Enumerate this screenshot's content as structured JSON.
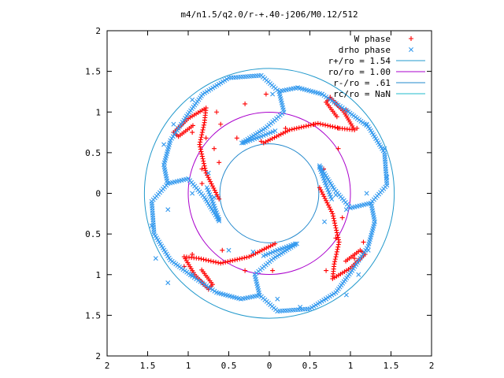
{
  "chart_data": {
    "type": "scatter",
    "title": "m4/n1.5/q2.0/r-+.40-j206/M0.12/512",
    "xlabel": "",
    "ylabel": "",
    "xlim": [
      -2,
      2
    ],
    "ylim": [
      -2,
      2
    ],
    "x_ticks": [
      -2,
      -1.5,
      -1,
      -0.5,
      0,
      0.5,
      1,
      1.5,
      2
    ],
    "y_ticks": [
      -2,
      -1.5,
      -1,
      -0.5,
      0,
      0.5,
      1,
      1.5,
      2
    ],
    "x_tick_labels": [
      "2",
      "1.5",
      "1",
      "0.5",
      "0",
      "0.5",
      "1",
      "1.5",
      "2"
    ],
    "y_tick_labels": [
      "2",
      "1.5",
      "1",
      "0.5",
      "0",
      "0.5",
      "1",
      "1.5",
      "2"
    ],
    "grid": false,
    "legend_position": "top-right",
    "colors": {
      "w_phase": "#ff0000",
      "drho_phase": "#3399ee",
      "r_plus": "#2299cc",
      "r_o": "#aa00cc",
      "r_minus": "#2288cc",
      "r_c": "#22bbcc"
    },
    "series": [
      {
        "name": "W phase",
        "marker": "+",
        "color": "#ff0000"
      },
      {
        "name": "drho phase",
        "marker": "x",
        "color": "#3399ee"
      },
      {
        "name": "r+/ro = 1.54",
        "kind": "circle",
        "radius": 1.54,
        "color": "#2299cc"
      },
      {
        "name": "ro/ro = 1.00",
        "kind": "circle",
        "radius": 1.0,
        "color": "#aa00cc"
      },
      {
        "name": "r-/ro = .61",
        "kind": "circle",
        "radius": 0.61,
        "color": "#2288cc"
      },
      {
        "name": "rc/ro = NaN",
        "kind": "circle",
        "radius": null,
        "color": "#22bbcc"
      }
    ],
    "spiral_arms": {
      "count": 4,
      "red_points": [
        [
          -0.04,
          1.22
        ],
        [
          -0.3,
          1.1
        ],
        [
          -0.65,
          1.0
        ],
        [
          -0.95,
          0.75
        ],
        [
          -0.78,
          0.68
        ],
        [
          -0.6,
          0.85
        ],
        [
          -0.68,
          0.55
        ],
        [
          -0.83,
          0.3
        ],
        [
          -0.83,
          0.12
        ],
        [
          -0.62,
          0.38
        ],
        [
          -0.4,
          0.68
        ],
        [
          -0.1,
          0.64
        ],
        [
          0.2,
          0.8
        ],
        [
          0.55,
          0.85
        ],
        [
          0.85,
          0.8
        ],
        [
          1.08,
          0.8
        ],
        [
          0.95,
          1.02
        ],
        [
          0.75,
          1.18
        ],
        [
          0.85,
          0.55
        ],
        [
          0.67,
          0.3
        ],
        [
          0.9,
          -0.3
        ],
        [
          0.82,
          -0.55
        ],
        [
          0.7,
          -0.95
        ],
        [
          1.05,
          -0.8
        ],
        [
          1.16,
          -0.6
        ],
        [
          0.04,
          -0.95
        ],
        [
          -0.3,
          -0.95
        ],
        [
          -0.58,
          -0.7
        ],
        [
          -0.95,
          -0.75
        ],
        [
          -1.05,
          -0.9
        ]
      ],
      "blue_points": [
        [
          0.04,
          1.22
        ],
        [
          0.35,
          1.3
        ],
        [
          0.65,
          1.22
        ],
        [
          0.95,
          1.02
        ],
        [
          1.2,
          0.85
        ],
        [
          1.42,
          0.55
        ],
        [
          1.45,
          0.2
        ],
        [
          1.2,
          0.0
        ],
        [
          0.95,
          -0.2
        ],
        [
          0.68,
          -0.35
        ],
        [
          0.62,
          0.32
        ],
        [
          0.82,
          -0.02
        ],
        [
          1.22,
          -0.7
        ],
        [
          1.1,
          -1.0
        ],
        [
          0.95,
          -1.25
        ],
        [
          0.7,
          -1.3
        ],
        [
          0.38,
          -1.4
        ],
        [
          0.1,
          -1.3
        ],
        [
          -0.2,
          -0.72
        ],
        [
          -0.5,
          -0.7
        ],
        [
          -0.95,
          -1.0
        ],
        [
          -1.25,
          -1.1
        ],
        [
          -1.4,
          -0.8
        ],
        [
          -1.45,
          -0.4
        ],
        [
          -1.25,
          -0.2
        ],
        [
          -0.95,
          0.0
        ],
        [
          -0.75,
          0.25
        ],
        [
          -1.3,
          0.6
        ],
        [
          -1.18,
          0.85
        ],
        [
          -0.95,
          1.15
        ],
        [
          -0.62,
          -0.32
        ],
        [
          -0.68,
          -0.05
        ]
      ]
    }
  }
}
